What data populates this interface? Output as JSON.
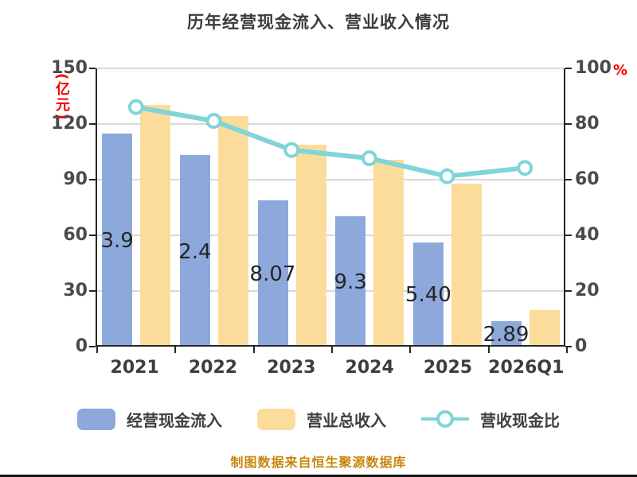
{
  "title": "历年经营现金流入、营业收入情况",
  "footer": "制图数据来自恒生聚源数据库",
  "left_axis": {
    "unit": "(亿元)",
    "ticks": [
      "0",
      "30",
      "60",
      "90",
      "120",
      "150"
    ],
    "max": 150,
    "color": "#f10000"
  },
  "right_axis": {
    "unit": "%",
    "ticks": [
      "0",
      "20",
      "40",
      "60",
      "80",
      "100"
    ],
    "max": 100,
    "color": "#f10000"
  },
  "legend": [
    {
      "label": "经营现金流入",
      "type": "bar",
      "color": "#8da9db"
    },
    {
      "label": "营业总收入",
      "type": "bar",
      "color": "#fbdc9b"
    },
    {
      "label": "营收现金比",
      "type": "line",
      "color": "#7fd5d8"
    }
  ],
  "colors": {
    "cash_bar": "#8da9db",
    "revenue_bar": "#fbdc9b",
    "ratio_line": "#7fd5d8",
    "marker_fill": "#ffffff",
    "axis_unit_red": "#f10000",
    "footer_orange": "#c8860d",
    "grid": "#d9d9d9",
    "axis": "#262626"
  },
  "chart_data": {
    "type": "bar",
    "subtype": "grouped bars with secondary-axis line",
    "title": "历年经营现金流入、营业收入情况",
    "categories": [
      "2021",
      "2022",
      "2023",
      "2024",
      "2025",
      "2026Q1"
    ],
    "series": [
      {
        "name": "经营现金流入",
        "type": "bar",
        "axis": "left",
        "color": "#8da9db",
        "values": [
          113.9,
          102.4,
          78.07,
          69.3,
          55.4,
          12.89
        ],
        "visible_labels": [
          "3.9",
          "2.4",
          "8.07",
          "9.3",
          "5.40",
          "2.89"
        ]
      },
      {
        "name": "营业总收入",
        "type": "bar",
        "axis": "left",
        "color": "#fbdc9b",
        "values": [
          129.5,
          123.5,
          108,
          100,
          87,
          19
        ]
      },
      {
        "name": "营收现金比",
        "type": "line",
        "axis": "right",
        "color": "#7fd5d8",
        "values": [
          86,
          81,
          70.5,
          67.5,
          61,
          64
        ]
      }
    ],
    "xlabel": "",
    "ylabel_left": "(亿元)",
    "ylabel_right": "%",
    "ylim_left": [
      0,
      150
    ],
    "ylim_right": [
      0,
      100
    ],
    "grid": true,
    "legend_position": "bottom"
  }
}
